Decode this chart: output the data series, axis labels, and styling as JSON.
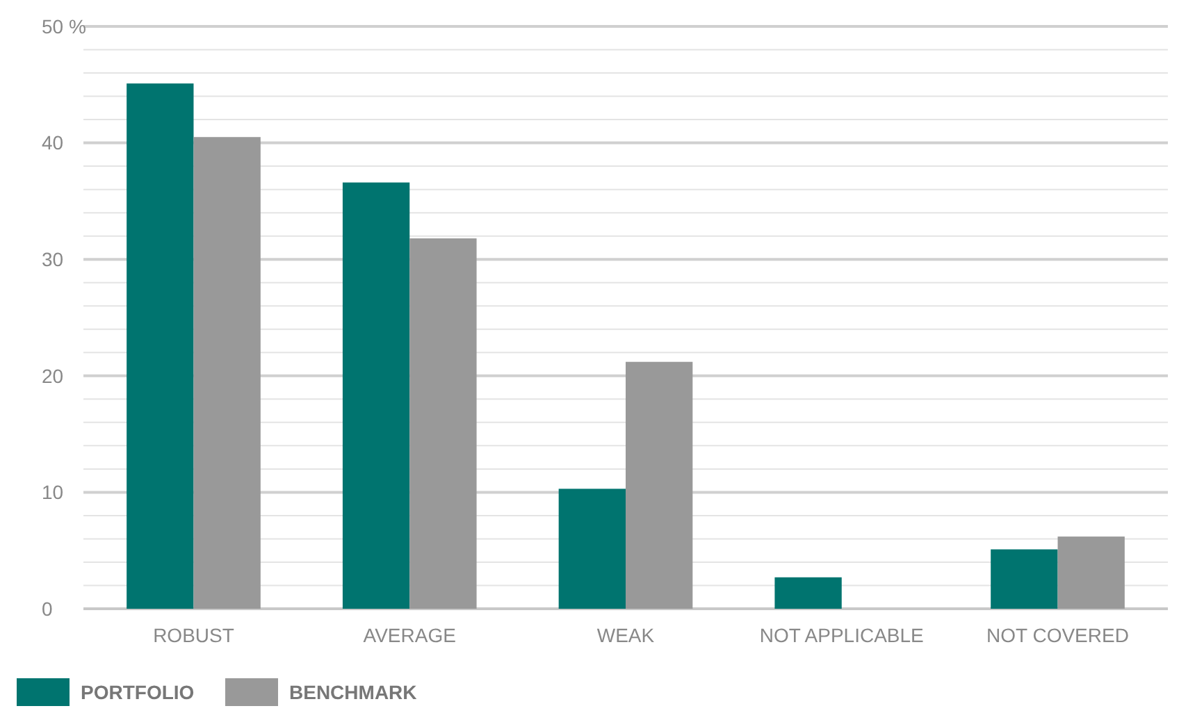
{
  "chart_data": {
    "type": "bar",
    "categories": [
      "ROBUST",
      "AVERAGE",
      "WEAK",
      "NOT APPLICABLE",
      "NOT COVERED"
    ],
    "series": [
      {
        "name": "PORTFOLIO",
        "color": "#00746f",
        "values": [
          45.1,
          36.6,
          10.3,
          2.7,
          5.1
        ]
      },
      {
        "name": "BENCHMARK",
        "color": "#999999",
        "values": [
          40.5,
          31.8,
          21.2,
          0,
          6.2
        ]
      }
    ],
    "ylim": [
      0,
      50
    ],
    "yticks": [
      0,
      {
        "value": 2,
        "label": null
      },
      {
        "value": 4,
        "label": null
      },
      {
        "value": 6,
        "label": null
      },
      {
        "value": 8,
        "label": null
      },
      10,
      {
        "value": 12,
        "label": null
      },
      {
        "value": 14,
        "label": null
      },
      {
        "value": 16,
        "label": null
      },
      {
        "value": 18,
        "label": null
      },
      20,
      {
        "value": 22,
        "label": null
      },
      {
        "value": 24,
        "label": null
      },
      {
        "value": 26,
        "label": null
      },
      {
        "value": 28,
        "label": null
      },
      30,
      {
        "value": 32,
        "label": null
      },
      {
        "value": 34,
        "label": null
      },
      {
        "value": 36,
        "label": null
      },
      {
        "value": 38,
        "label": null
      },
      40,
      {
        "value": 42,
        "label": null
      },
      {
        "value": 44,
        "label": null
      },
      {
        "value": 46,
        "label": null
      },
      {
        "value": 48,
        "label": null
      },
      {
        "value": 50,
        "label": "50 %"
      }
    ],
    "grid": true,
    "legend": "bottom left"
  }
}
